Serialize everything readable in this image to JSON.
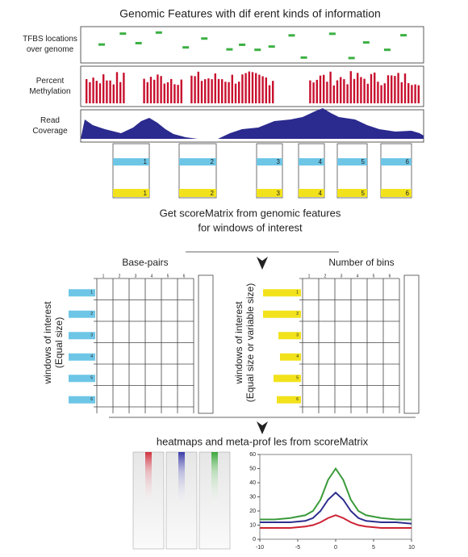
{
  "title": "Genomic Features with dif erent kinds of information",
  "tracks": [
    {
      "label": [
        "TFBS locations",
        "over genome"
      ]
    },
    {
      "label": [
        "Percent",
        "Methylation"
      ]
    },
    {
      "label": [
        "Read",
        "Coverage"
      ]
    }
  ],
  "windows": {
    "blue": [
      1,
      2,
      3,
      4,
      5,
      6
    ],
    "yellow": [
      1,
      2,
      3,
      4,
      5,
      6
    ]
  },
  "step1": [
    "Get scoreMatrix from genomic features",
    "for windows of interest"
  ],
  "matrices": [
    {
      "title": "Base-pairs",
      "ylabel": [
        "windows of interest",
        "(Equal size)"
      ],
      "columns": [
        1,
        2,
        3,
        4,
        5,
        6
      ],
      "rows": [
        1,
        2,
        3,
        4,
        5,
        6
      ]
    },
    {
      "title": "Number of bins",
      "ylabel": [
        "windows of interest",
        "(Equal size or variable size)"
      ],
      "columns": [
        1,
        2,
        3,
        4,
        5,
        6
      ],
      "rows": [
        1,
        2,
        3,
        4,
        5,
        6
      ]
    }
  ],
  "step2": "heatmaps and meta-prof les from scoreMatrix",
  "chart_data": {
    "type": "line",
    "x": [
      -10,
      -8,
      -6,
      -4,
      -3,
      -2,
      -1,
      0,
      1,
      2,
      3,
      4,
      6,
      8,
      10
    ],
    "series": [
      {
        "color": "#3a9a3a",
        "values": [
          14,
          14,
          15,
          17,
          20,
          28,
          42,
          50,
          42,
          28,
          20,
          17,
          15,
          14,
          14
        ]
      },
      {
        "color": "#2e2e8f",
        "values": [
          12,
          12,
          12,
          13,
          15,
          20,
          28,
          33,
          28,
          20,
          15,
          13,
          12,
          12,
          11
        ]
      },
      {
        "color": "#cc2233",
        "values": [
          8,
          8,
          8,
          9,
          10,
          12,
          15,
          17,
          15,
          12,
          10,
          9,
          8,
          8,
          8
        ]
      }
    ],
    "xlim": [
      -10,
      10
    ],
    "ylim": [
      0,
      60
    ],
    "xticks": [
      -10,
      -5,
      0,
      5,
      10
    ],
    "yticks": [
      0,
      10,
      20,
      30,
      40,
      50,
      60
    ]
  }
}
